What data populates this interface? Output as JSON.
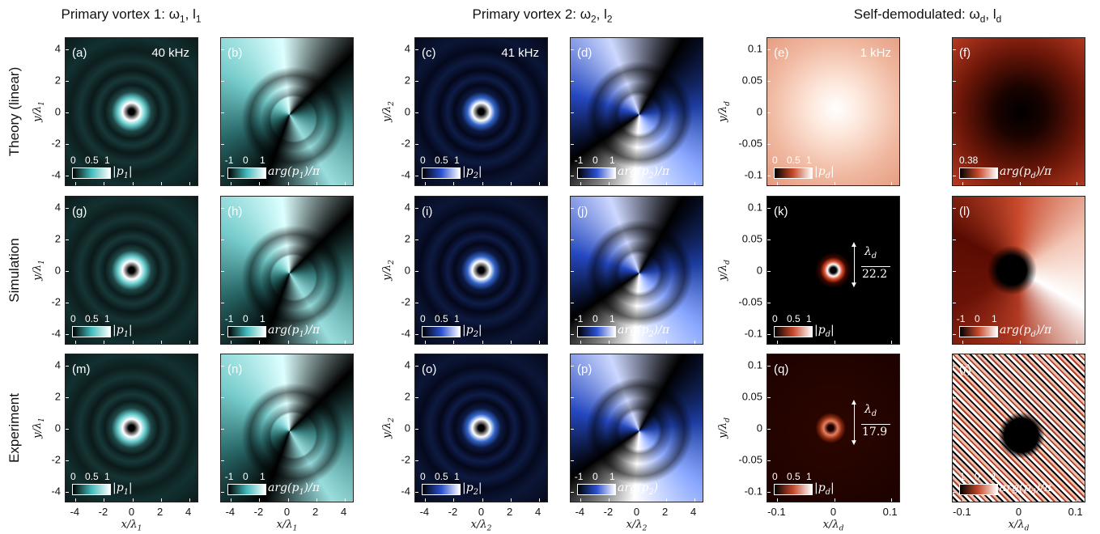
{
  "columns": [
    "Primary vortex 1:  ω_1, l_1",
    "Primary vortex 2:  ω_2, l_2",
    "Self-demodulated:  ω_d, l_d"
  ],
  "rows": [
    "Theory (linear)",
    "Simulation",
    "Experiment"
  ],
  "axes": [
    {
      "yticks": [
        "4",
        "2",
        "0",
        "-2",
        "-4"
      ],
      "xticks": [
        "-4",
        "-2",
        "0",
        "2",
        "4"
      ],
      "ylabel": "y/λ_1",
      "xlabel": "x/λ_1"
    },
    {
      "yticks": [
        "4",
        "2",
        "0",
        "-2",
        "-4"
      ],
      "xticks": [
        "-4",
        "-2",
        "0",
        "2",
        "4"
      ],
      "ylabel": "y/λ_2",
      "xlabel": "x/λ_2"
    },
    {
      "yticks": [
        "0.1",
        "0.05",
        "0",
        "-0.05",
        "-0.1"
      ],
      "xticks": [
        "-0.1",
        "0",
        "0.1"
      ],
      "ylabel": "y/λ_d",
      "xlabel": "x/λ_d"
    }
  ],
  "panels": [
    {
      "label": "(a)",
      "note": "40 kHz",
      "cbar_ticks": [
        "0",
        "0.5",
        "1"
      ],
      "cbar_label": "|p_1|"
    },
    {
      "label": "(b)",
      "cbar_ticks": [
        "-1",
        "0",
        "1"
      ],
      "cbar_label": "arg(p_1)/π"
    },
    {
      "label": "(c)",
      "note": "41 kHz",
      "cbar_ticks": [
        "0",
        "0.5",
        "1"
      ],
      "cbar_label": "|p_2|"
    },
    {
      "label": "(d)",
      "cbar_ticks": [
        "-1",
        "0",
        "1"
      ],
      "cbar_label": "arg(p_2)/π"
    },
    {
      "label": "(e)",
      "note": "1 kHz",
      "cbar_ticks": [
        "0",
        "0.5",
        "1"
      ],
      "cbar_label": "|p_d|"
    },
    {
      "label": "(f)",
      "cbar_ticks": [
        "0.38"
      ],
      "cbar_label": "arg(p_d)/π"
    },
    {
      "label": "(g)",
      "cbar_ticks": [
        "0",
        "0.5",
        "1"
      ],
      "cbar_label": "|p_1|"
    },
    {
      "label": "(h)",
      "cbar_ticks": [
        "-1",
        "0",
        "1"
      ],
      "cbar_label": "arg(p_1)/π"
    },
    {
      "label": "(i)",
      "cbar_ticks": [
        "0",
        "0.5",
        "1"
      ],
      "cbar_label": "|p_2|"
    },
    {
      "label": "(j)",
      "cbar_ticks": [
        "-1",
        "0",
        "1"
      ],
      "cbar_label": "arg(p_2)/π"
    },
    {
      "label": "(k)",
      "cbar_ticks": [
        "0",
        "0.5",
        "1"
      ],
      "cbar_label": "|p_d|",
      "annotation": {
        "num": "λ_d",
        "den": "22.2"
      }
    },
    {
      "label": "(l)",
      "cbar_ticks": [
        "-1",
        "0",
        "1"
      ],
      "cbar_label": "arg(p_d)/π"
    },
    {
      "label": "(m)",
      "cbar_ticks": [
        "0",
        "0.5",
        "1"
      ],
      "cbar_label": "|p_1|"
    },
    {
      "label": "(n)",
      "cbar_ticks": [
        "-1",
        "0",
        "1"
      ],
      "cbar_label": "arg(p_1)/π"
    },
    {
      "label": "(o)",
      "cbar_ticks": [
        "0",
        "0.5",
        "1"
      ],
      "cbar_label": "|p_2|"
    },
    {
      "label": "(p)",
      "cbar_ticks": [
        "-1",
        "0",
        "1"
      ],
      "cbar_label": "arg(p_2)"
    },
    {
      "label": "(q)",
      "cbar_ticks": [
        "0",
        "0.5",
        "1"
      ],
      "cbar_label": "|p_d|",
      "annotation": {
        "num": "λ_d",
        "den": "17.9"
      }
    },
    {
      "label": "(r)",
      "cbar_ticks": [
        "-1",
        "0",
        "1"
      ],
      "cbar_label": "arg(p_d)/π"
    }
  ]
}
